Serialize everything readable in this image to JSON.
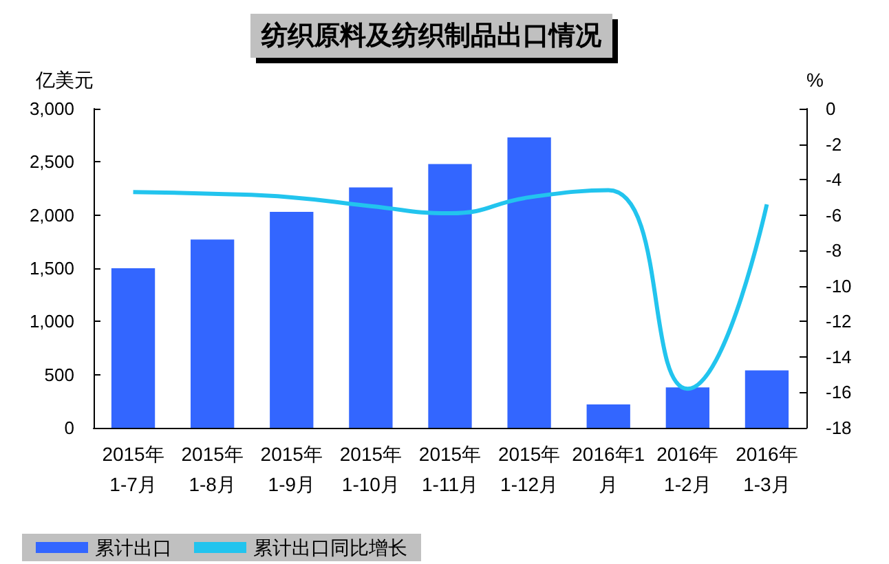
{
  "chart_data": {
    "type": "bar",
    "title": "纺织原料及纺织制品出口情况",
    "ylabel": "亿美元",
    "y2label": "%",
    "categories": [
      "2015年\n1-7月",
      "2015年\n1-8月",
      "2015年\n1-9月",
      "2015年\n1-10月",
      "2015年\n1-11月",
      "2015年\n1-12月",
      "2016年1\n月",
      "2016年\n1-2月",
      "2016年\n1-3月"
    ],
    "series": [
      {
        "name": "累计出口",
        "color": "#3366ff",
        "values": [
          1500,
          1770,
          2030,
          2260,
          2480,
          2730,
          220,
          380,
          540
        ]
      },
      {
        "name": "累计出口同比增长",
        "type": "line",
        "axis": "y2",
        "color": "#22c4ee",
        "values": [
          -4.7,
          -4.8,
          -5.0,
          -5.5,
          -5.9,
          -5.0,
          -4.6,
          -15.8,
          -5.4
        ]
      }
    ],
    "ylim": [
      0,
      3000
    ],
    "yticks": [
      0,
      500,
      {
        "value": 1000,
        "label": "1,000"
      },
      {
        "value": 1500,
        "label": "1,500"
      },
      {
        "value": 2000,
        "label": "2,000"
      },
      {
        "value": 2500,
        "label": "2,500"
      },
      {
        "value": 3000,
        "label": "3,000"
      }
    ],
    "y2lim": [
      -18,
      0
    ],
    "y2ticks": [
      -18,
      -16,
      -14,
      -12,
      -10,
      -8,
      -6,
      -4,
      -2,
      0
    ],
    "grid": false,
    "legend": "bottom left",
    "marker": "none",
    "line_style": "solid"
  }
}
